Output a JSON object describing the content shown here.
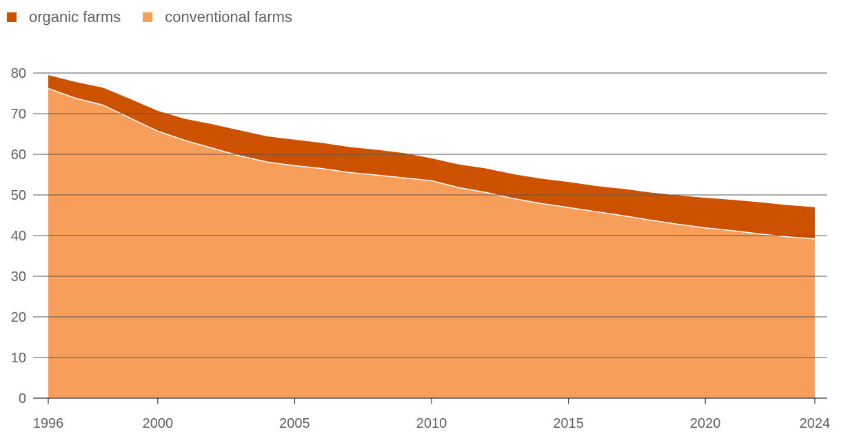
{
  "chart_data": {
    "type": "area",
    "stacked": true,
    "title": "",
    "xlabel": "",
    "ylabel": "",
    "x": [
      1996,
      1997,
      1998,
      1999,
      2000,
      2001,
      2002,
      2003,
      2004,
      2005,
      2006,
      2007,
      2008,
      2009,
      2010,
      2011,
      2012,
      2013,
      2014,
      2015,
      2016,
      2017,
      2018,
      2019,
      2020,
      2021,
      2022,
      2023,
      2024
    ],
    "xlim": [
      1996,
      2024
    ],
    "ylim": [
      0,
      80
    ],
    "x_ticks": [
      1996,
      2000,
      2005,
      2010,
      2015,
      2020,
      2024
    ],
    "y_ticks": [
      0,
      10,
      20,
      30,
      40,
      50,
      60,
      70,
      80
    ],
    "grid": "horizontal",
    "legend_position": "top-left",
    "series": [
      {
        "name": "organic farms",
        "color": "#cc5200",
        "values": [
          3.3,
          4.0,
          4.3,
          4.7,
          5.0,
          5.3,
          5.9,
          6.3,
          6.3,
          6.4,
          6.3,
          6.3,
          6.2,
          6.1,
          5.5,
          5.7,
          5.9,
          6.0,
          6.1,
          6.3,
          6.3,
          6.6,
          6.8,
          7.1,
          7.4,
          7.6,
          7.8,
          7.8,
          7.8
        ]
      },
      {
        "name": "conventional farms",
        "color": "#f79e5a",
        "values": [
          76.2,
          73.8,
          72.1,
          68.9,
          65.7,
          63.4,
          61.5,
          59.6,
          58.1,
          57.2,
          56.5,
          55.5,
          54.9,
          54.2,
          53.5,
          51.8,
          50.6,
          49.1,
          47.9,
          46.9,
          45.9,
          44.9,
          43.8,
          42.8,
          41.9,
          41.2,
          40.4,
          39.7,
          39.2
        ]
      }
    ]
  }
}
